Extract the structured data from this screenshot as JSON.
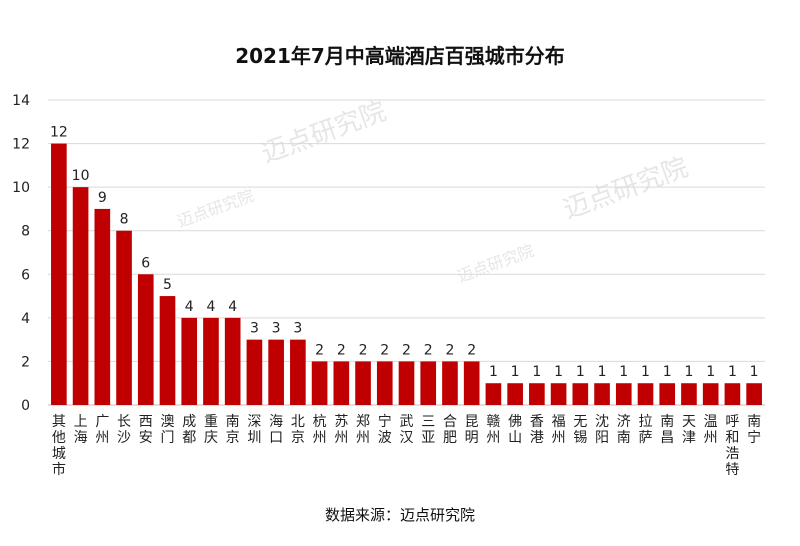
{
  "chart_data": {
    "type": "bar",
    "title": "2021年7月中高端酒店百强城市分布",
    "categories": [
      "其他城市",
      "上海",
      "广州",
      "长沙",
      "西安",
      "澳门",
      "成都",
      "重庆",
      "南京",
      "深圳",
      "海口",
      "北京",
      "杭州",
      "苏州",
      "郑州",
      "宁波",
      "武汉",
      "三亚",
      "合肥",
      "昆明",
      "赣州",
      "佛山",
      "香港",
      "福州",
      "无锡",
      "沈阳",
      "济南",
      "拉萨",
      "南昌",
      "天津",
      "温州",
      "呼和浩特",
      "南宁"
    ],
    "values": [
      12,
      10,
      9,
      8,
      6,
      5,
      4,
      4,
      4,
      3,
      3,
      3,
      2,
      2,
      2,
      2,
      2,
      2,
      2,
      2,
      1,
      1,
      1,
      1,
      1,
      1,
      1,
      1,
      1,
      1,
      1,
      1,
      1
    ],
    "ylim": [
      0,
      14
    ],
    "yticks": [
      0,
      2,
      4,
      6,
      8,
      10,
      12,
      14
    ],
    "grid": true,
    "bar_color": "#c00000",
    "data_labels": true
  },
  "source": "数据来源：迈点研究院",
  "watermark": "迈点研究院"
}
